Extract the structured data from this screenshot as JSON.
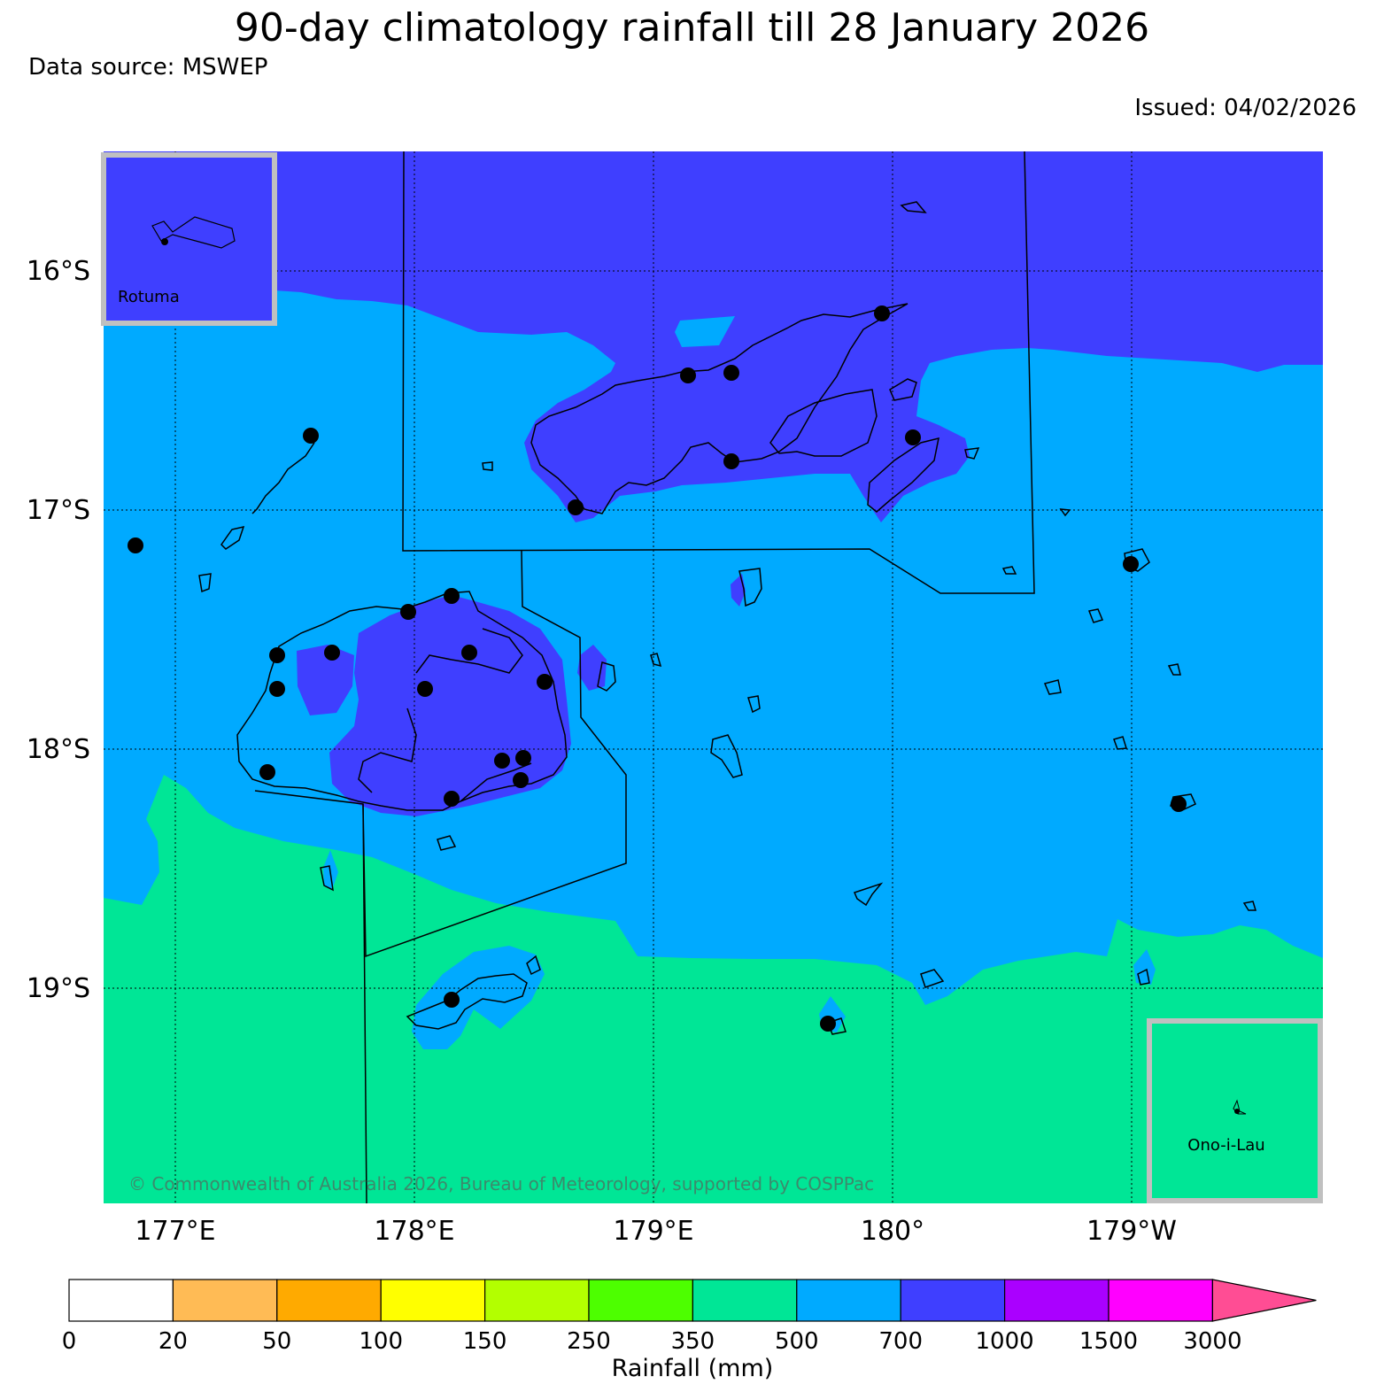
{
  "header": {
    "title": "90-day climatology rainfall till 28 January 2026",
    "source": "Data source: MSWEP",
    "issued": "Issued: 04/02/2026"
  },
  "axes": {
    "lat_labels": [
      "16°S",
      "17°S",
      "18°S",
      "19°S"
    ],
    "lon_labels": [
      "177°E",
      "178°E",
      "179°E",
      "180°",
      "179°W"
    ]
  },
  "insets": {
    "rotuma": "Rotuma",
    "ono_i_lau": "Ono-i-Lau"
  },
  "copyright": "© Commonwealth of Australia 2026, Bureau of Meteorology, supported by COSPPac",
  "colorbar": {
    "title": "Rainfall (mm)",
    "ticks": [
      "0",
      "20",
      "50",
      "100",
      "150",
      "250",
      "350",
      "500",
      "700",
      "1000",
      "1500",
      "3000"
    ],
    "colors": [
      "#ffffff",
      "#ffbb55",
      "#ffaa00",
      "#ffff00",
      "#b3ff00",
      "#4dff00",
      "#00e696",
      "#00aaff",
      "#3f3fff",
      "#aa00ff",
      "#ff00ff",
      "#ff4d94"
    ]
  },
  "legend_colors": {
    "350-500": "#00e696",
    "500-700": "#00aaff",
    "700-1000": "#3f3fff"
  }
}
